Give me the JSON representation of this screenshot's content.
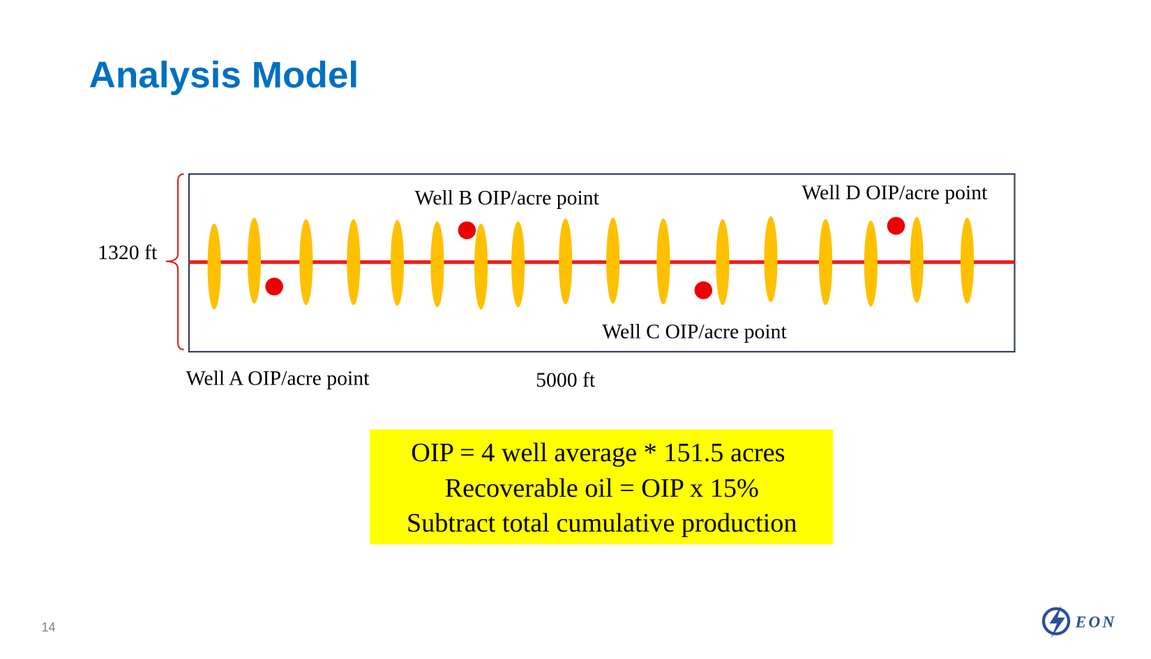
{
  "header": {
    "title": "Analysis Model"
  },
  "diagram": {
    "height_label": "1320 ft",
    "length_label": "5000 ft",
    "points": [
      "Well A OIP/acre point",
      "Well B OIP/acre point",
      "Well C OIP/acre point",
      "Well D OIP/acre point"
    ]
  },
  "formula": [
    "OIP = 4 well average * 151.5 acres",
    "Recoverable oil = OIP x 15%",
    "Subtract total cumulative production"
  ],
  "footer": {
    "page_number": "14",
    "logo": "EON"
  }
}
